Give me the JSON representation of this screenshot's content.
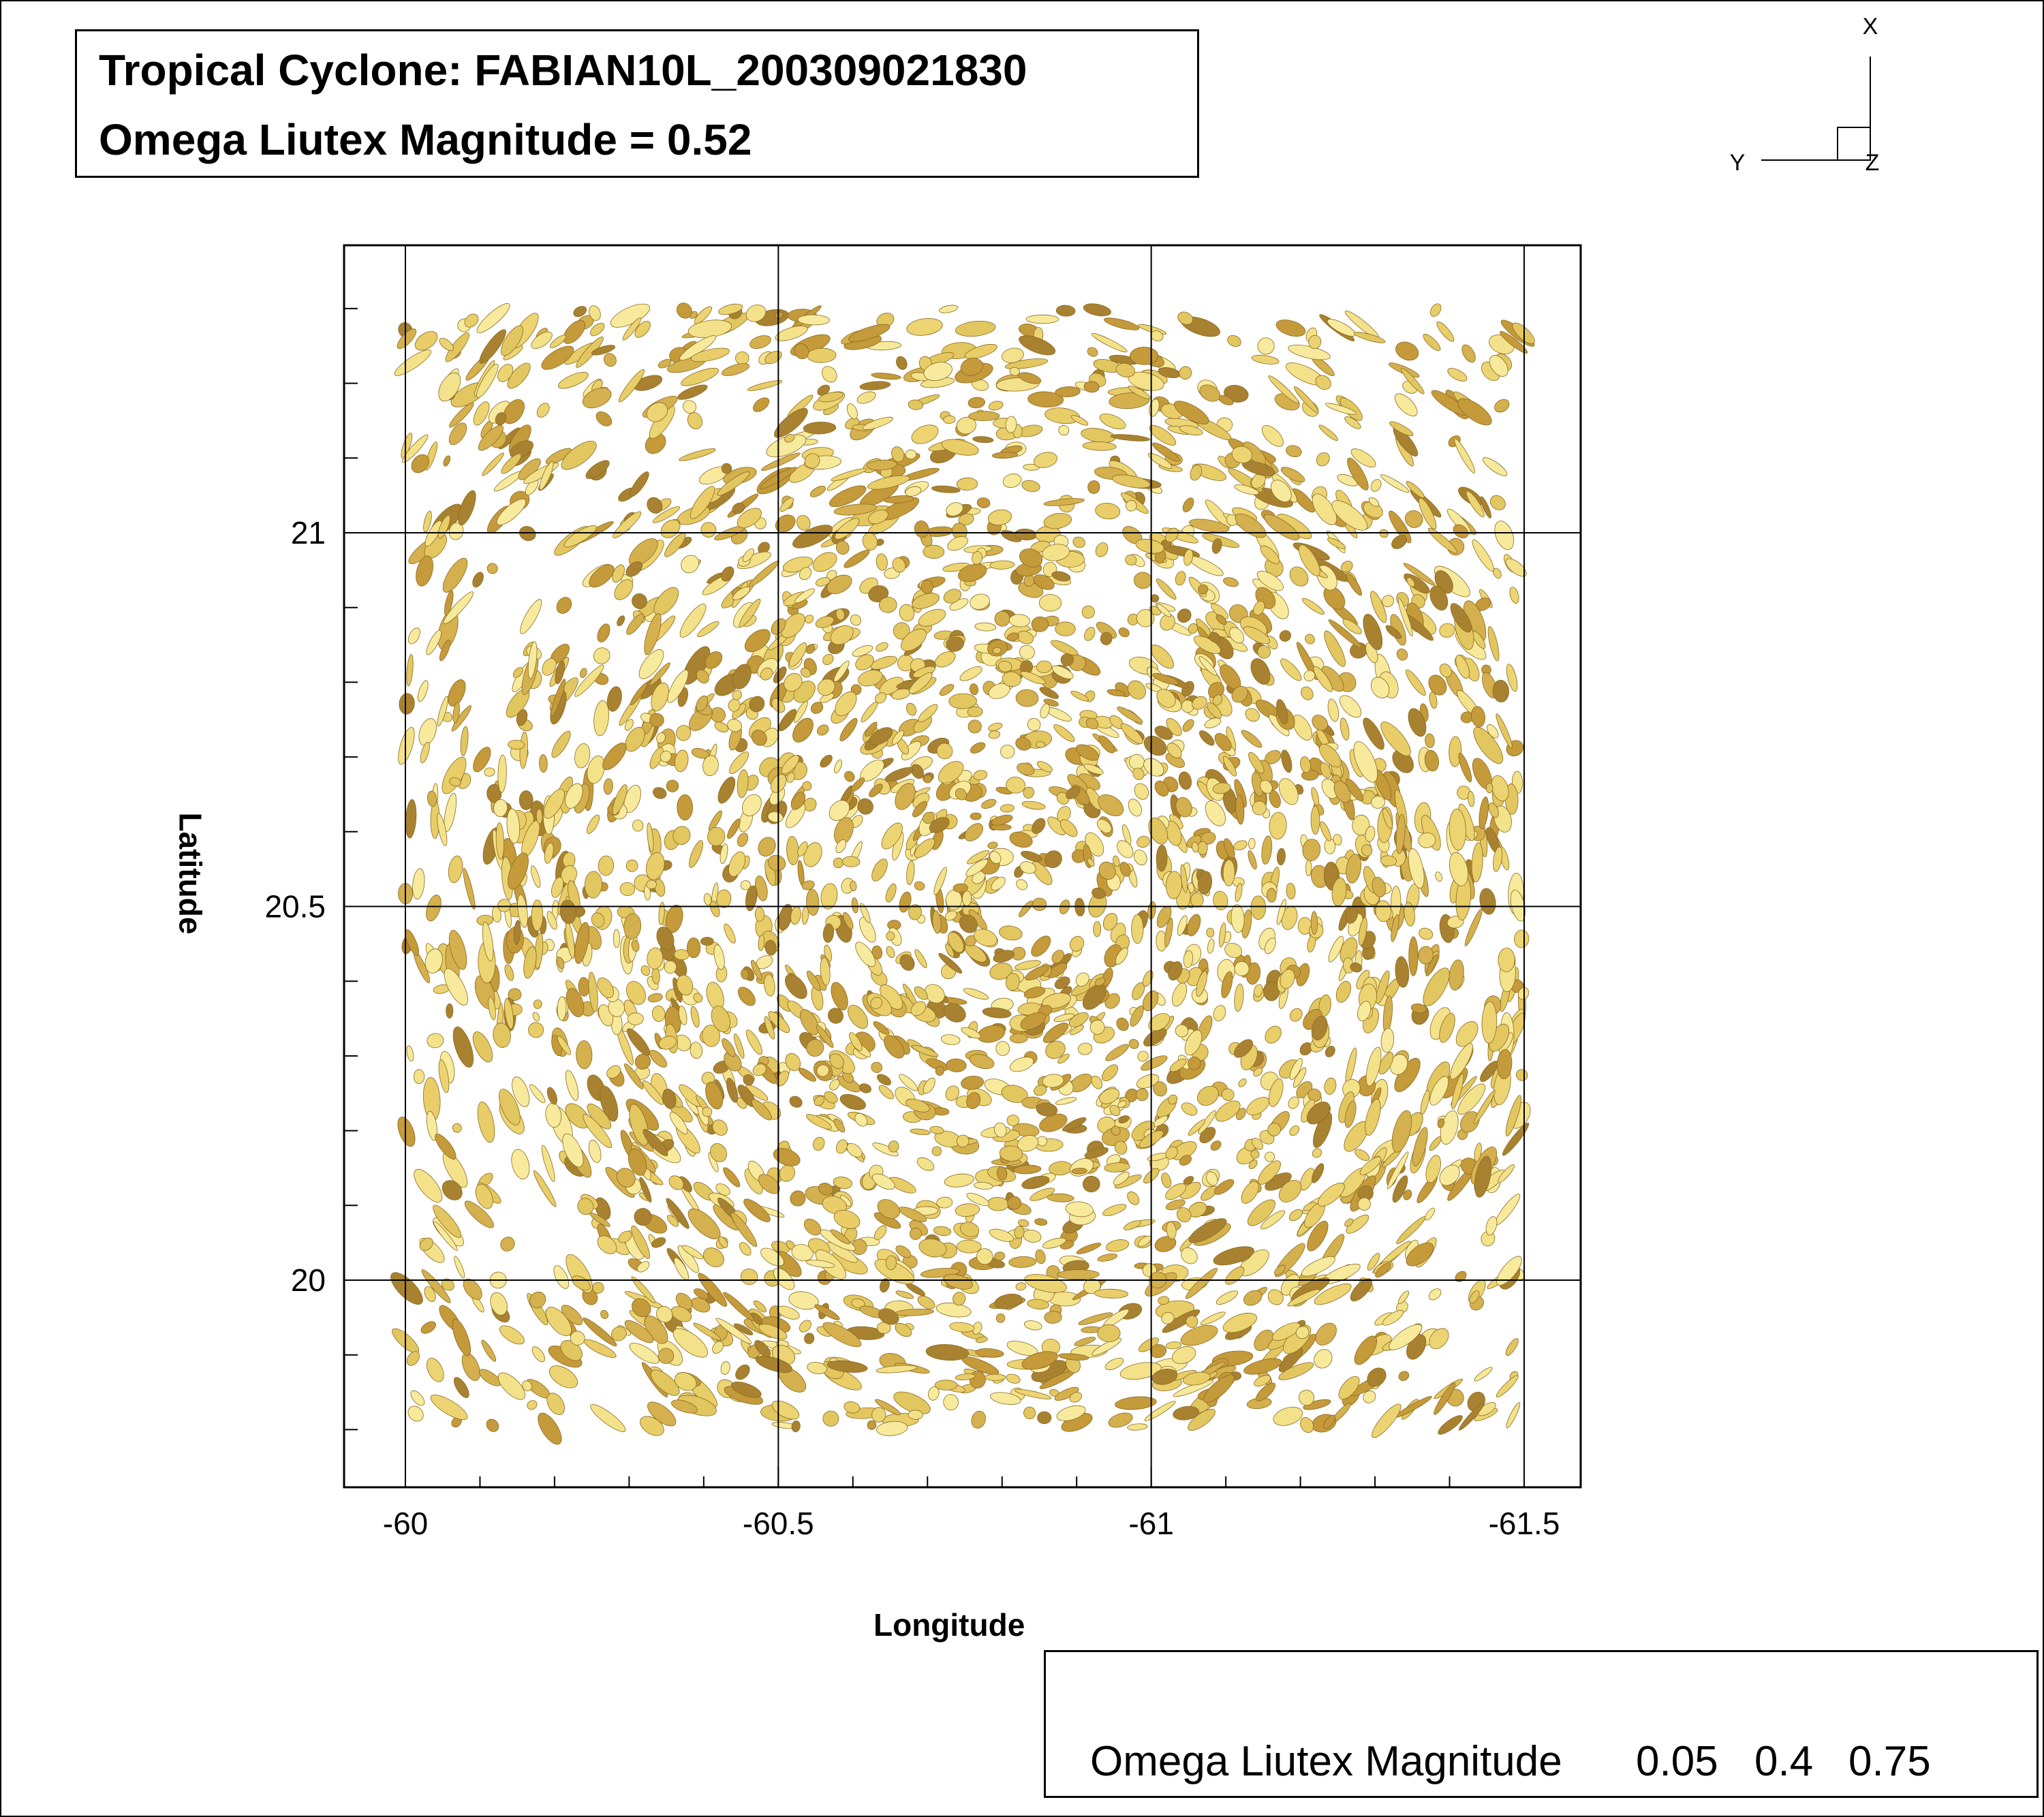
{
  "title_lines": [
    "Tropical Cyclone: FABIAN10L_200309021830",
    "Omega Liutex Magnitude = 0.52"
  ],
  "axis_triad": {
    "x": "X",
    "y": "Y",
    "z": "Z"
  },
  "chart_data": {
    "type": "heatmap",
    "description_type": "isosurface-plot",
    "xlabel": "Longitude",
    "ylabel": "Latitude",
    "xlim": [
      -59.92,
      -61.52
    ],
    "ylim": [
      19.74,
      21.38
    ],
    "x_ticks": [
      -60,
      -60.5,
      -61,
      -61.5
    ],
    "x_tick_labels": [
      "-60",
      "-60.5",
      "-61",
      "-61.5"
    ],
    "y_ticks": [
      20,
      20.5,
      21
    ],
    "y_tick_labels": [
      "20",
      "20.5",
      "21"
    ],
    "grid": true,
    "data_extent": {
      "lon": [
        -60.0,
        -61.5
      ],
      "lat": [
        19.8,
        21.3
      ]
    },
    "isosurface_value": 0.52,
    "isosurface_color": "#e0c060",
    "legend": {
      "title": "Omega Liutex Magnitude",
      "tick_labels": [
        "0.05",
        "0.4",
        "0.75"
      ],
      "colors": [
        "#0a8a2a",
        "#19a52a",
        "#2cbf22",
        "#55cc22",
        "#88d640",
        "#b8e070",
        "#eeea80",
        "#f5e070",
        "#f2d060",
        "#f0c050",
        "#e8b040",
        "#d89a30",
        "#c08030",
        "#a06a38",
        "#b89070",
        "#d8c0a8",
        "#eee4da",
        "#ffffff"
      ],
      "position": "bottom-right"
    }
  }
}
